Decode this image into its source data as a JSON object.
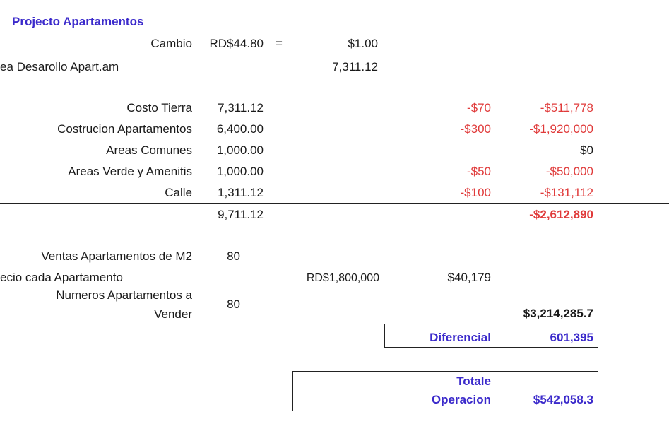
{
  "sheet": {
    "title": "Projecto Apartamentos",
    "exchange": {
      "label": "Cambio",
      "rate": "RD$44.80",
      "equals": "=",
      "usd": "$1.00"
    },
    "area_row": {
      "label": "ea Desarollo Apart.am",
      "value": "7,311.12"
    },
    "costs": [
      {
        "label": "Costo Tierra",
        "area": "7,311.12",
        "price": "-$70",
        "total": "-$511,778"
      },
      {
        "label": "Costrucion Apartamentos",
        "area": "6,400.00",
        "price": "-$300",
        "total": "-$1,920,000"
      },
      {
        "label": "Areas Comunes",
        "area": "1,000.00",
        "price": "",
        "total": "$0"
      },
      {
        "label": "Areas Verde y Amenitis",
        "area": "1,000.00",
        "price": "-$50",
        "total": "-$50,000"
      },
      {
        "label": "Calle",
        "area": "1,311.12",
        "price": "-$100",
        "total": "-$131,112"
      }
    ],
    "cost_summary": {
      "area_total": "9,711.12",
      "total": "-$2,612,890"
    },
    "sales": {
      "m2_label": "Ventas Apartamentos de M2",
      "m2_value": "80",
      "price_label": "ecio cada Apartamento",
      "price_rd": "RD$1,800,000",
      "price_usd": "$40,179",
      "units_label_1": "Numeros Apartamentos a",
      "units_label_2": "Vender",
      "units_value": "80",
      "sales_total": "$3,214,285.7"
    },
    "diferencial": {
      "label": "Diferencial",
      "value": "601,395"
    },
    "totale": {
      "label_1": "Totale",
      "label_2": "Operacion",
      "value": "$542,058.3"
    }
  }
}
